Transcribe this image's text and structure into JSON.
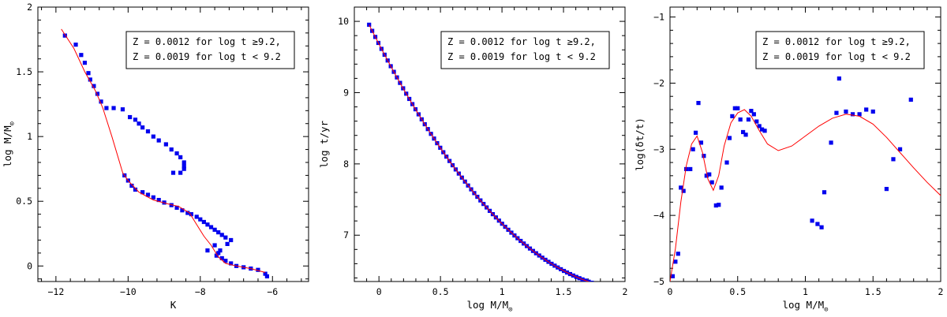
{
  "chart_data": [
    {
      "type": "scatter",
      "xlabel": "K",
      "ylabel": "log M/M",
      "ylabel_sub": "⊙",
      "xlim": [
        -12.5,
        -5
      ],
      "ylim": [
        -0.12,
        2.0
      ],
      "xticks": [
        -12,
        -10,
        -8,
        -6
      ],
      "xtick_labels": [
        "−12",
        "−10",
        "−8",
        "−6"
      ],
      "yticks": [
        0,
        0.5,
        1,
        1.5,
        2
      ],
      "ytick_labels": [
        "0",
        "0.5",
        "1",
        "1.5",
        "2"
      ],
      "legend": [
        "Z = 0.0012 for log t ≥9.2,",
        "Z = 0.0019 for log t < 9.2"
      ],
      "legend_position": "top-right",
      "points": [
        [
          -11.75,
          1.78
        ],
        [
          -11.45,
          1.71
        ],
        [
          -11.3,
          1.63
        ],
        [
          -11.2,
          1.57
        ],
        [
          -11.1,
          1.49
        ],
        [
          -11.05,
          1.44
        ],
        [
          -10.95,
          1.39
        ],
        [
          -10.85,
          1.33
        ],
        [
          -10.75,
          1.27
        ],
        [
          -10.6,
          1.22
        ],
        [
          -10.4,
          1.22
        ],
        [
          -10.15,
          1.21
        ],
        [
          -9.95,
          1.15
        ],
        [
          -9.8,
          1.13
        ],
        [
          -9.7,
          1.1
        ],
        [
          -9.6,
          1.07
        ],
        [
          -9.45,
          1.04
        ],
        [
          -9.3,
          1.0
        ],
        [
          -9.15,
          0.97
        ],
        [
          -8.95,
          0.94
        ],
        [
          -8.8,
          0.9
        ],
        [
          -8.65,
          0.87
        ],
        [
          -8.55,
          0.84
        ],
        [
          -8.45,
          0.8
        ],
        [
          -8.45,
          0.77
        ],
        [
          -8.45,
          0.75
        ],
        [
          -8.75,
          0.72
        ],
        [
          -8.55,
          0.72
        ],
        [
          -10.1,
          0.7
        ],
        [
          -10.0,
          0.66
        ],
        [
          -9.9,
          0.62
        ],
        [
          -9.8,
          0.59
        ],
        [
          -9.6,
          0.57
        ],
        [
          -9.45,
          0.55
        ],
        [
          -9.3,
          0.53
        ],
        [
          -9.15,
          0.51
        ],
        [
          -9.0,
          0.49
        ],
        [
          -8.8,
          0.47
        ],
        [
          -8.65,
          0.45
        ],
        [
          -8.5,
          0.43
        ],
        [
          -8.35,
          0.41
        ],
        [
          -8.25,
          0.4
        ],
        [
          -8.1,
          0.38
        ],
        [
          -8.0,
          0.36
        ],
        [
          -7.9,
          0.34
        ],
        [
          -7.8,
          0.32
        ],
        [
          -7.7,
          0.3
        ],
        [
          -7.6,
          0.28
        ],
        [
          -7.5,
          0.26
        ],
        [
          -7.4,
          0.24
        ],
        [
          -7.3,
          0.22
        ],
        [
          -7.15,
          0.2
        ],
        [
          -7.25,
          0.17
        ],
        [
          -7.45,
          0.12
        ],
        [
          -7.5,
          0.1
        ],
        [
          -7.55,
          0.08
        ],
        [
          -7.4,
          0.06
        ],
        [
          -7.3,
          0.04
        ],
        [
          -7.15,
          0.02
        ],
        [
          -7.0,
          0.0
        ],
        [
          -6.8,
          -0.01
        ],
        [
          -6.6,
          -0.02
        ],
        [
          -6.4,
          -0.03
        ],
        [
          -6.2,
          -0.06
        ],
        [
          -6.15,
          -0.08
        ],
        [
          -7.8,
          0.12
        ],
        [
          -7.6,
          0.16
        ]
      ],
      "curve": [
        [
          -11.85,
          1.83
        ],
        [
          -11.5,
          1.68
        ],
        [
          -11.2,
          1.5
        ],
        [
          -10.9,
          1.35
        ],
        [
          -10.7,
          1.22
        ],
        [
          -10.45,
          1.0
        ],
        [
          -10.15,
          0.72
        ],
        [
          -10.0,
          0.66
        ],
        [
          -9.7,
          0.57
        ],
        [
          -9.3,
          0.51
        ],
        [
          -8.9,
          0.48
        ],
        [
          -8.6,
          0.46
        ],
        [
          -8.3,
          0.41
        ],
        [
          -8.1,
          0.32
        ],
        [
          -7.9,
          0.23
        ],
        [
          -7.7,
          0.16
        ],
        [
          -7.5,
          0.07
        ],
        [
          -7.3,
          0.02
        ],
        [
          -7.0,
          0.0
        ],
        [
          -6.6,
          -0.02
        ],
        [
          -6.2,
          -0.05
        ]
      ]
    },
    {
      "type": "scatter",
      "xlabel": "log M/M",
      "xlabel_sub": "⊙",
      "ylabel": "log t/yr",
      "xlim": [
        -0.2,
        2.0
      ],
      "ylim": [
        6.35,
        10.2
      ],
      "xticks": [
        0,
        0.5,
        1,
        1.5,
        2
      ],
      "xtick_labels": [
        "0",
        "0.5",
        "1",
        "1.5",
        "2"
      ],
      "yticks": [
        7,
        8,
        9,
        10
      ],
      "ytick_labels": [
        "7",
        "8",
        "9",
        "10"
      ],
      "legend": [
        "Z = 0.0012 for log t ≥9.2,",
        "Z = 0.0019 for log t < 9.2"
      ],
      "legend_position": "top-right",
      "x_start": -0.08,
      "x_end": 1.78,
      "n_points": 75,
      "model": "log t = 7.75 - 2.2(m-0.7) + 0.8(m-0.7)^2"
    },
    {
      "type": "scatter",
      "xlabel": "log M/M",
      "xlabel_sub": "⊙",
      "ylabel": "log(δt/t)",
      "xlim": [
        0,
        2.0
      ],
      "ylim": [
        -5,
        -0.85
      ],
      "xticks": [
        0,
        0.5,
        1,
        1.5,
        2
      ],
      "xtick_labels": [
        "0",
        "0.5",
        "1",
        "1.5",
        "2"
      ],
      "yticks": [
        -5,
        -4,
        -3,
        -2,
        -1
      ],
      "ytick_labels": [
        "−5",
        "−4",
        "−3",
        "−2",
        "−1"
      ],
      "legend": [
        "Z = 0.0012 for log t ≥9.2,",
        "Z = 0.0019 for log t < 9.2"
      ],
      "legend_position": "top-right",
      "points": [
        [
          0.02,
          -4.92
        ],
        [
          0.04,
          -4.7
        ],
        [
          0.06,
          -4.58
        ],
        [
          0.08,
          -3.58
        ],
        [
          0.1,
          -3.63
        ],
        [
          0.12,
          -3.3
        ],
        [
          0.15,
          -3.3
        ],
        [
          0.17,
          -3.0
        ],
        [
          0.19,
          -2.75
        ],
        [
          0.21,
          -2.3
        ],
        [
          0.23,
          -2.9
        ],
        [
          0.25,
          -3.1
        ],
        [
          0.27,
          -3.4
        ],
        [
          0.29,
          -3.38
        ],
        [
          0.31,
          -3.5
        ],
        [
          0.34,
          -3.85
        ],
        [
          0.36,
          -3.84
        ],
        [
          0.38,
          -3.58
        ],
        [
          0.42,
          -3.2
        ],
        [
          0.44,
          -2.83
        ],
        [
          0.46,
          -2.5
        ],
        [
          0.48,
          -2.38
        ],
        [
          0.5,
          -2.38
        ],
        [
          0.52,
          -2.55
        ],
        [
          0.54,
          -2.74
        ],
        [
          0.56,
          -2.78
        ],
        [
          0.58,
          -2.55
        ],
        [
          0.6,
          -2.42
        ],
        [
          0.62,
          -2.47
        ],
        [
          0.64,
          -2.58
        ],
        [
          0.66,
          -2.65
        ],
        [
          0.68,
          -2.7
        ],
        [
          0.7,
          -2.72
        ],
        [
          1.05,
          -4.08
        ],
        [
          1.09,
          -4.13
        ],
        [
          1.12,
          -4.18
        ],
        [
          1.14,
          -3.65
        ],
        [
          1.19,
          -2.9
        ],
        [
          1.23,
          -2.45
        ],
        [
          1.25,
          -1.93
        ],
        [
          1.3,
          -2.43
        ],
        [
          1.35,
          -2.47
        ],
        [
          1.4,
          -2.47
        ],
        [
          1.45,
          -2.4
        ],
        [
          1.5,
          -2.43
        ],
        [
          1.6,
          -3.6
        ],
        [
          1.65,
          -3.15
        ],
        [
          1.7,
          -3.0
        ],
        [
          1.78,
          -2.25
        ]
      ],
      "curve": [
        [
          0.0,
          -5.0
        ],
        [
          0.04,
          -4.5
        ],
        [
          0.08,
          -3.8
        ],
        [
          0.12,
          -3.25
        ],
        [
          0.16,
          -2.92
        ],
        [
          0.2,
          -2.8
        ],
        [
          0.24,
          -3.05
        ],
        [
          0.28,
          -3.45
        ],
        [
          0.32,
          -3.62
        ],
        [
          0.36,
          -3.4
        ],
        [
          0.4,
          -2.95
        ],
        [
          0.45,
          -2.6
        ],
        [
          0.5,
          -2.45
        ],
        [
          0.55,
          -2.4
        ],
        [
          0.6,
          -2.5
        ],
        [
          0.66,
          -2.72
        ],
        [
          0.72,
          -2.92
        ],
        [
          0.8,
          -3.02
        ],
        [
          0.9,
          -2.95
        ],
        [
          1.0,
          -2.8
        ],
        [
          1.1,
          -2.65
        ],
        [
          1.2,
          -2.53
        ],
        [
          1.3,
          -2.47
        ],
        [
          1.4,
          -2.5
        ],
        [
          1.5,
          -2.62
        ],
        [
          1.6,
          -2.82
        ],
        [
          1.7,
          -3.05
        ],
        [
          1.8,
          -3.28
        ],
        [
          1.9,
          -3.5
        ],
        [
          2.0,
          -3.7
        ]
      ]
    }
  ]
}
